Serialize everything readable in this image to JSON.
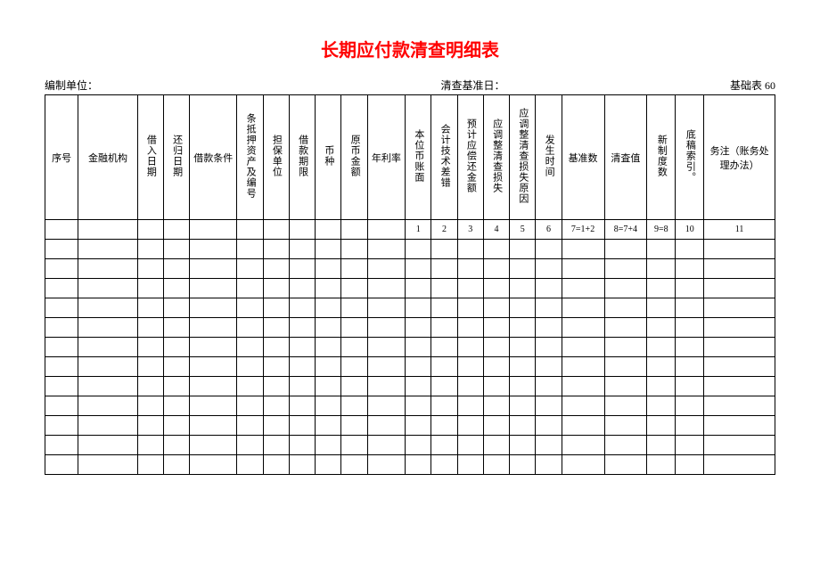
{
  "title": "长期应付款清查明细表",
  "info": {
    "left_label": "编制单位：",
    "center_label": "清查基准日：",
    "right_label": "基础表 60"
  },
  "headers": {
    "seq": "序号",
    "institution": "金融机构",
    "borrow_date": "借入日期",
    "repay_date": "还归日期",
    "loan_cond": "借款条件",
    "mortgage": "条抵押资产及编号",
    "guarantor": "担保单位",
    "loan_term": "借款期限",
    "currency": "币种",
    "orig_amt": "原币金额",
    "rate": "年利率",
    "base_cny": "本位币账面",
    "acct_diff": "会计技术差错",
    "est_repay": "预计应偿还金额",
    "adj_loss": "应调整清查损失",
    "loss_reason": "应调整清查损失原因",
    "occur_time": "发生时间",
    "basis_num": "基准数",
    "verify_val": "清査值",
    "new_sys": "新制度数",
    "draft_ref": "底稿索引。",
    "note": "务注（账务处理办法）"
  },
  "formula": {
    "f1": "1",
    "f2": "2",
    "f3": "3",
    "f4": "4",
    "f5": "5",
    "f6": "6",
    "f7": "7=1+2",
    "f8": "8=7+4",
    "f9": "9=8",
    "f10": "10",
    "f11": "11"
  },
  "empty_rows": 12,
  "styling": {
    "title_color": "#ff0000",
    "border_color": "#000000",
    "background": "#ffffff",
    "title_fontsize": 20,
    "body_fontsize": 11
  }
}
